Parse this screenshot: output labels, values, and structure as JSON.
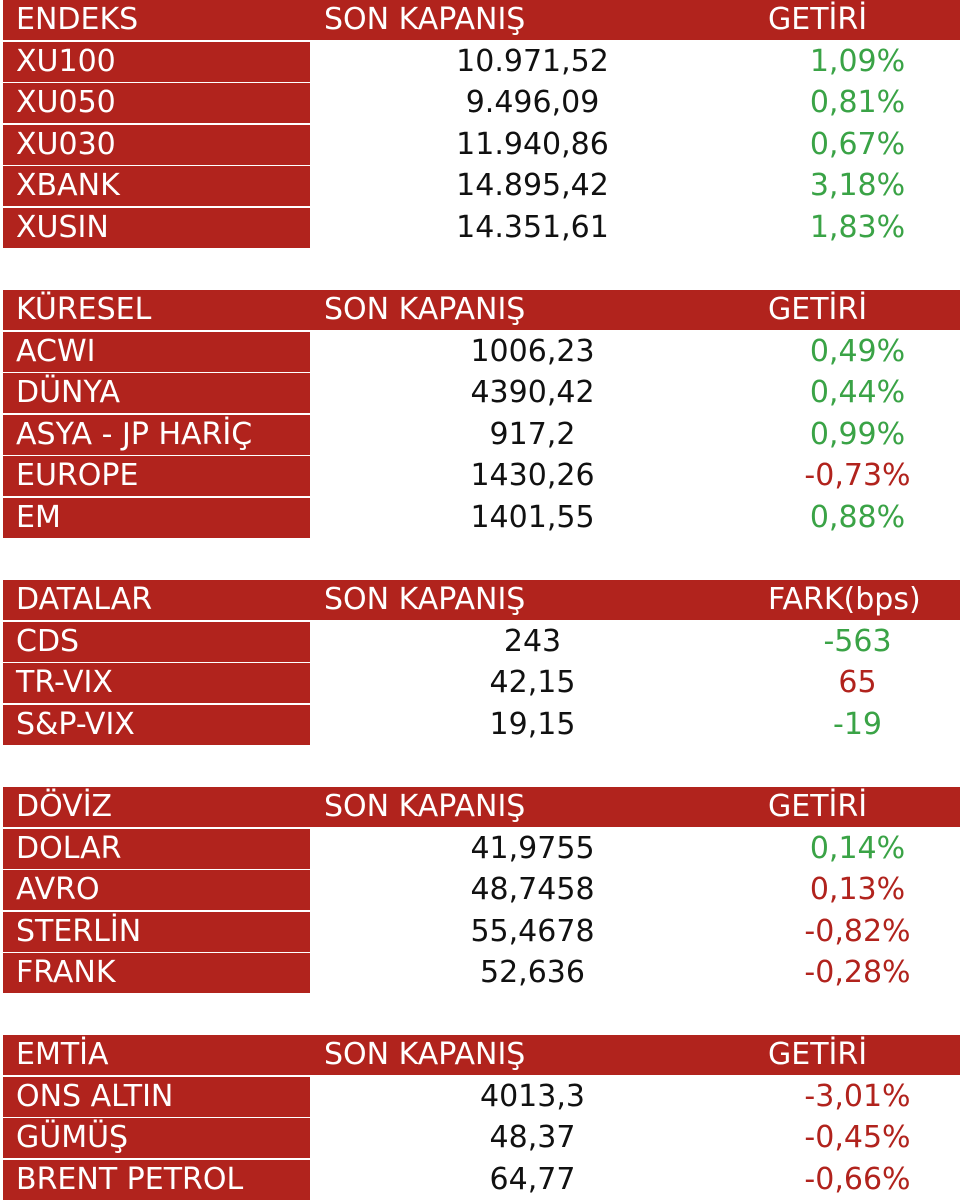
{
  "colors": {
    "header_red": "#b1231d",
    "positive_green": "#3aa346",
    "negative_red": "#b1231d"
  },
  "sections": [
    {
      "title": "ENDEKS",
      "col_close": "SON KAPANIŞ",
      "col_change": "GETİRİ",
      "rows": [
        {
          "name": "XU100",
          "close": "10.971,52",
          "change": "1,09%",
          "trend": "up"
        },
        {
          "name": "XU050",
          "close": "9.496,09",
          "change": "0,81%",
          "trend": "up"
        },
        {
          "name": "XU030",
          "close": "11.940,86",
          "change": "0,67%",
          "trend": "up"
        },
        {
          "name": "XBANK",
          "close": "14.895,42",
          "change": "3,18%",
          "trend": "up"
        },
        {
          "name": "XUSIN",
          "close": "14.351,61",
          "change": "1,83%",
          "trend": "up"
        }
      ]
    },
    {
      "title": "KÜRESEL",
      "col_close": "SON KAPANIŞ",
      "col_change": "GETİRİ",
      "rows": [
        {
          "name": "ACWI",
          "close": "1006,23",
          "change": "0,49%",
          "trend": "up"
        },
        {
          "name": "DÜNYA",
          "close": "4390,42",
          "change": "0,44%",
          "trend": "up"
        },
        {
          "name": "ASYA - JP HARİÇ",
          "close": "917,2",
          "change": "0,99%",
          "trend": "up"
        },
        {
          "name": "EUROPE",
          "close": "1430,26",
          "change": "-0,73%",
          "trend": "down"
        },
        {
          "name": "EM",
          "close": "1401,55",
          "change": "0,88%",
          "trend": "up"
        }
      ]
    },
    {
      "title": "DATALAR",
      "col_close": "SON KAPANIŞ",
      "col_change": "FARK(bps)",
      "rows": [
        {
          "name": "CDS",
          "close": "243",
          "change": "-563",
          "trend": "up"
        },
        {
          "name": "TR-VIX",
          "close": "42,15",
          "change": "65",
          "trend": "down"
        },
        {
          "name": "S&P-VIX",
          "close": "19,15",
          "change": "-19",
          "trend": "up"
        }
      ]
    },
    {
      "title": "DÖVİZ",
      "col_close": "SON KAPANIŞ",
      "col_change": "GETİRİ",
      "rows": [
        {
          "name": "DOLAR",
          "close": "41,9755",
          "change": "0,14%",
          "trend": "up"
        },
        {
          "name": "AVRO",
          "close": "48,7458",
          "change": "0,13%",
          "trend": "down"
        },
        {
          "name": "STERLİN",
          "close": "55,4678",
          "change": "-0,82%",
          "trend": "down"
        },
        {
          "name": "FRANK",
          "close": "52,636",
          "change": "-0,28%",
          "trend": "down"
        }
      ]
    },
    {
      "title": "EMTİA",
      "col_close": "SON KAPANIŞ",
      "col_change": "GETİRİ",
      "rows": [
        {
          "name": "ONS ALTIN",
          "close": "4013,3",
          "change": "-3,01%",
          "trend": "down"
        },
        {
          "name": "GÜMÜŞ",
          "close": "48,37",
          "change": "-0,45%",
          "trend": "down"
        },
        {
          "name": "BRENT PETROL",
          "close": "64,77",
          "change": "-0,66%",
          "trend": "down"
        }
      ]
    }
  ]
}
